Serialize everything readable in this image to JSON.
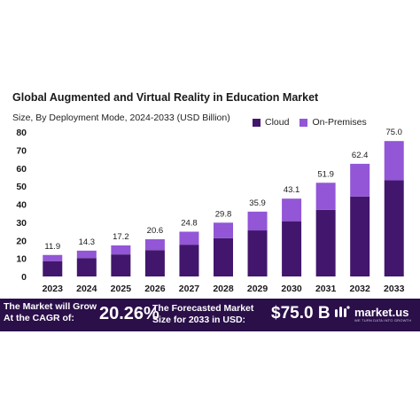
{
  "chart_data": {
    "type": "bar",
    "stacked": true,
    "title": "Global Augmented and Virtual Reality in Education Market",
    "subtitle": "Size, By Deployment Mode, 2024-2033 (USD Billion)",
    "categories": [
      "2023",
      "2024",
      "2025",
      "2026",
      "2027",
      "2028",
      "2029",
      "2030",
      "2031",
      "2032",
      "2033"
    ],
    "series": [
      {
        "name": "Cloud",
        "color": "#42166c",
        "values": [
          8.5,
          10.2,
          12.2,
          14.6,
          17.6,
          21.2,
          25.5,
          30.6,
          36.9,
          44.3,
          53.3
        ]
      },
      {
        "name": "On-Premises",
        "color": "#9256d6",
        "values": [
          3.4,
          4.1,
          5.0,
          6.0,
          7.2,
          8.6,
          10.4,
          12.5,
          15.0,
          18.1,
          21.7
        ]
      }
    ],
    "totals": [
      "11.9",
      "14.3",
      "17.2",
      "20.6",
      "24.8",
      "29.8",
      "35.9",
      "43.1",
      "51.9",
      "62.4",
      "75.0"
    ],
    "ylim": [
      0,
      80
    ],
    "yticks": [
      0,
      10,
      20,
      30,
      40,
      50,
      60,
      70,
      80
    ],
    "grid": false,
    "legend_position": "top-right"
  },
  "banner": {
    "grow_line1": "The Market will Grow",
    "grow_line2": "At the CAGR of:",
    "cagr": "20.26%",
    "forecast_line1": "The Forecasted Market",
    "forecast_line2": "Size for 2033 in USD:",
    "forecast_value": "$75.0 B",
    "brand_name": "market.us",
    "brand_tagline": "WE TURN DATA INTO GROWTH"
  }
}
